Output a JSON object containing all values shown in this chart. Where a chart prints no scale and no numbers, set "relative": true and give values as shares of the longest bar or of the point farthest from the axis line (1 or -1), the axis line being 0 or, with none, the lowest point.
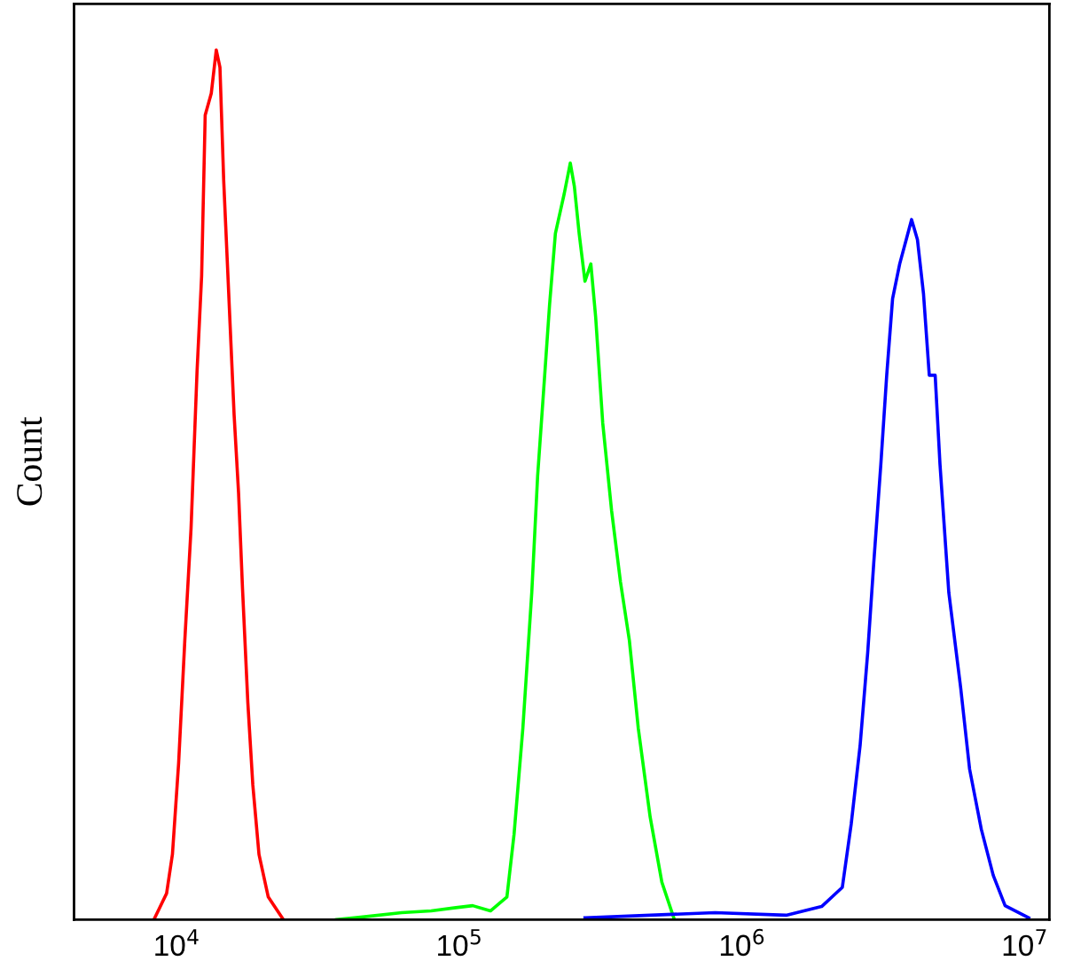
{
  "chart_data": {
    "type": "line",
    "ylabel": "Count",
    "relative": true,
    "log": "x",
    "grid": false,
    "tick_labels": "x",
    "xlim": [
      4330,
      12200000
    ],
    "xticks": [
      {
        "value": 10000,
        "label": "10$^{4}$"
      },
      {
        "value": 100000,
        "label": "10$^{5}$"
      },
      {
        "value": 1000000,
        "label": "10$^{6}$"
      },
      {
        "value": 10000000,
        "label": "10$^{7}$"
      }
    ],
    "series": [
      {
        "color": "#ff0000",
        "x": [
          8300,
          9200,
          9650,
          10150,
          10670,
          11230,
          11790,
          12240,
          12600,
          13240,
          13790,
          14210,
          14650,
          15430,
          15950,
          16540,
          17080,
          17830,
          18570,
          19530,
          21060,
          23810
        ],
        "values": [
          0,
          0.03,
          0.075,
          0.18,
          0.32,
          0.45,
          0.63,
          0.74,
          0.925,
          0.95,
          1,
          0.98,
          0.85,
          0.685,
          0.58,
          0.49,
          0.38,
          0.25,
          0.155,
          0.075,
          0.026,
          0
        ]
      },
      {
        "color": "#00ff00",
        "x": [
          36700,
          42450,
          62440,
          79400,
          98560,
          111300,
          128600,
          147100,
          155900,
          167500,
          180100,
          188900,
          198500,
          208200,
          218300,
          234700,
          246500,
          254800,
          264900,
          277800,
          291400,
          303000,
          321000,
          345100,
          371000,
          398800,
          428800,
          472300,
          519500,
          572600
        ],
        "values": [
          0,
          0.002,
          0.008,
          0.01,
          0.014,
          0.016,
          0.01,
          0.026,
          0.098,
          0.22,
          0.376,
          0.51,
          0.61,
          0.707,
          0.789,
          0.835,
          0.87,
          0.843,
          0.789,
          0.734,
          0.754,
          0.693,
          0.571,
          0.47,
          0.388,
          0.321,
          0.22,
          0.118,
          0.043,
          0.002
        ]
      },
      {
        "color": "#0000ff",
        "x": [
          277800,
          801700,
          1429000,
          1909000,
          2259000,
          2429000,
          2611000,
          2778000,
          2918000,
          3092000,
          3243000,
          3402000,
          3605000,
          3802000,
          3971000,
          4165000,
          4375000,
          4587000,
          4812000,
          5004000,
          5378000,
          5926000,
          6370000,
          7006000,
          7721000,
          8504000,
          10310000
        ],
        "values": [
          0.002,
          0.008,
          0.005,
          0.015,
          0.037,
          0.11,
          0.2,
          0.307,
          0.41,
          0.524,
          0.626,
          0.714,
          0.754,
          0.782,
          0.805,
          0.782,
          0.72,
          0.626,
          0.626,
          0.524,
          0.376,
          0.266,
          0.173,
          0.104,
          0.051,
          0.016,
          0.002
        ]
      }
    ]
  }
}
